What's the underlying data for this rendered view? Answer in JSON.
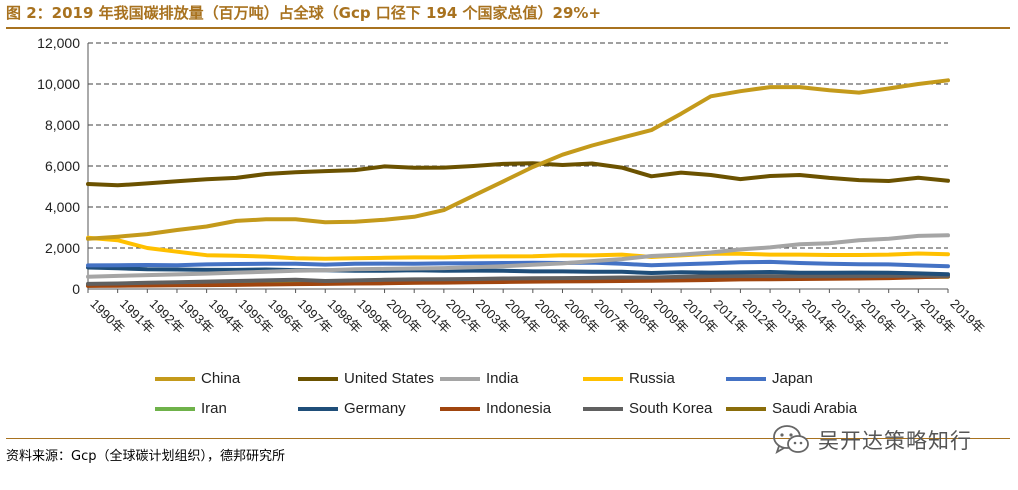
{
  "header": {
    "title": "图 2：2019 年我国碳排放量（百万吨）占全球（Gcp 口径下 194 个国家总值）29%+"
  },
  "footer": {
    "source": "资料来源：Gcp（全球碳计划组织），德邦研究所",
    "brand": "吴开达策略知行",
    "brand_icon": "wechat-icon"
  },
  "chart_data": {
    "type": "line",
    "title": "",
    "xlabel": "",
    "ylabel": "",
    "ylim": [
      0,
      12000
    ],
    "yticks": [
      0,
      2000,
      4000,
      6000,
      8000,
      10000,
      12000
    ],
    "ytick_labels": [
      "0",
      "2,000",
      "4,000",
      "6,000",
      "8,000",
      "10,000",
      "12,000"
    ],
    "grid": "horizontal dashed",
    "legend_position": "bottom",
    "categories": [
      "1990年",
      "1991年",
      "1992年",
      "1993年",
      "1994年",
      "1995年",
      "1996年",
      "1997年",
      "1998年",
      "1999年",
      "2000年",
      "2001年",
      "2002年",
      "2003年",
      "2004年",
      "2005年",
      "2006年",
      "2007年",
      "2008年",
      "2009年",
      "2010年",
      "2011年",
      "2012年",
      "2013年",
      "2014年",
      "2015年",
      "2016年",
      "2017年",
      "2018年",
      "2019年"
    ],
    "series": [
      {
        "name": "Saudi Arabia",
        "color": "#8a6d0a",
        "values": [
          160,
          190,
          210,
          220,
          230,
          250,
          260,
          270,
          280,
          290,
          300,
          310,
          330,
          350,
          380,
          400,
          420,
          440,
          470,
          500,
          530,
          560,
          580,
          590,
          600,
          600,
          610,
          600,
          590,
          600
        ]
      },
      {
        "name": "Iran",
        "color": "#6fb24a",
        "values": [
          220,
          230,
          250,
          260,
          280,
          290,
          300,
          310,
          330,
          340,
          360,
          370,
          390,
          410,
          430,
          450,
          470,
          490,
          510,
          530,
          550,
          570,
          580,
          600,
          620,
          630,
          640,
          650,
          660,
          680
        ]
      },
      {
        "name": "Indonesia",
        "color": "#a0450e",
        "values": [
          150,
          160,
          170,
          180,
          190,
          200,
          220,
          240,
          250,
          270,
          280,
          300,
          310,
          330,
          340,
          360,
          370,
          380,
          390,
          400,
          420,
          440,
          470,
          480,
          490,
          500,
          510,
          530,
          570,
          620
        ]
      },
      {
        "name": "South Korea",
        "color": "#606060",
        "values": [
          250,
          270,
          300,
          330,
          360,
          390,
          420,
          450,
          390,
          420,
          450,
          470,
          480,
          490,
          510,
          520,
          530,
          540,
          560,
          560,
          590,
          620,
          630,
          630,
          620,
          620,
          630,
          640,
          650,
          640
        ]
      },
      {
        "name": "Germany",
        "color": "#1f4e79",
        "values": [
          1050,
          1010,
          960,
          950,
          930,
          930,
          950,
          920,
          910,
          890,
          890,
          910,
          890,
          900,
          890,
          860,
          860,
          840,
          840,
          780,
          820,
          800,
          810,
          830,
          790,
          790,
          800,
          790,
          760,
          720
        ]
      },
      {
        "name": "Japan",
        "color": "#4472c4",
        "values": [
          1150,
          1160,
          1170,
          1160,
          1200,
          1220,
          1230,
          1230,
          1190,
          1230,
          1240,
          1230,
          1250,
          1260,
          1270,
          1280,
          1270,
          1290,
          1230,
          1160,
          1210,
          1250,
          1300,
          1320,
          1270,
          1230,
          1210,
          1200,
          1150,
          1110
        ]
      },
      {
        "name": "Russia",
        "color": "#ffc000",
        "values": [
          2500,
          2380,
          2000,
          1820,
          1650,
          1620,
          1580,
          1500,
          1480,
          1500,
          1520,
          1540,
          1540,
          1580,
          1590,
          1600,
          1650,
          1640,
          1680,
          1560,
          1640,
          1720,
          1720,
          1680,
          1680,
          1660,
          1660,
          1680,
          1730,
          1700
        ]
      },
      {
        "name": "India",
        "color": "#a5a5a5",
        "values": [
          600,
          640,
          680,
          710,
          750,
          800,
          840,
          890,
          910,
          960,
          980,
          1000,
          1020,
          1060,
          1110,
          1180,
          1250,
          1360,
          1460,
          1610,
          1680,
          1780,
          1930,
          2030,
          2180,
          2230,
          2380,
          2450,
          2590,
          2620
        ]
      },
      {
        "name": "United States",
        "color": "#6b5200",
        "values": [
          5120,
          5060,
          5150,
          5260,
          5350,
          5420,
          5610,
          5700,
          5750,
          5800,
          5980,
          5910,
          5920,
          6000,
          6100,
          6130,
          6050,
          6120,
          5920,
          5500,
          5680,
          5560,
          5360,
          5510,
          5560,
          5420,
          5310,
          5270,
          5430,
          5280
        ]
      },
      {
        "name": "China",
        "color": "#c49a1b",
        "values": [
          2450,
          2550,
          2680,
          2880,
          3050,
          3320,
          3400,
          3400,
          3260,
          3280,
          3380,
          3520,
          3850,
          4550,
          5250,
          5950,
          6550,
          7000,
          7380,
          7750,
          8550,
          9400,
          9650,
          9850,
          9850,
          9700,
          9580,
          9780,
          10000,
          10180
        ]
      }
    ],
    "legend_order": [
      "China",
      "United States",
      "India",
      "Russia",
      "Japan",
      "Iran",
      "Germany",
      "Indonesia",
      "South Korea",
      "Saudi Arabia"
    ]
  }
}
